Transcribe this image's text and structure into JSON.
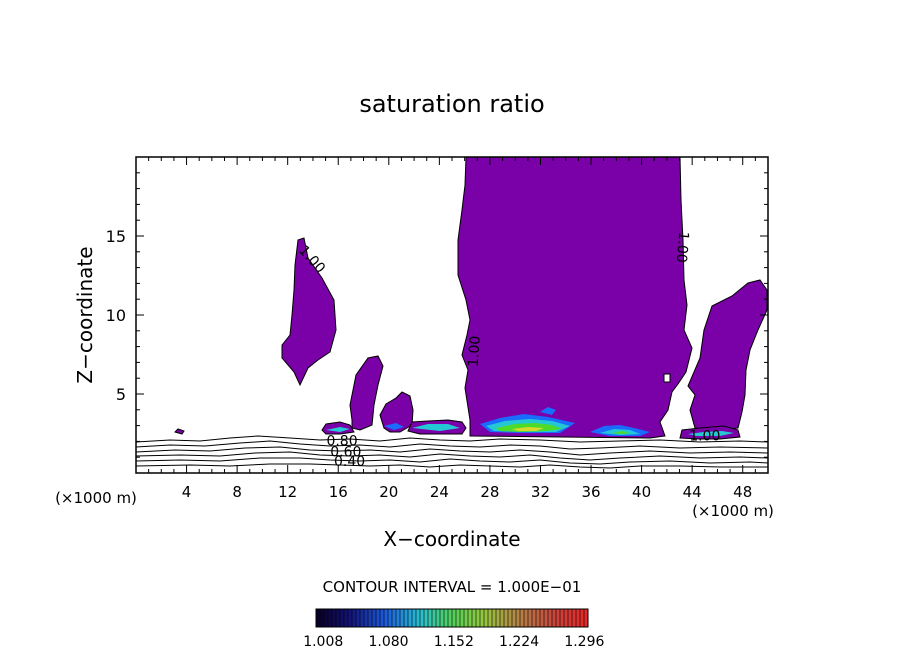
{
  "chart_data": {
    "type": "contour",
    "title": "saturation ratio",
    "xlabel": "X−coordinate",
    "ylabel": "Z−coordinate",
    "x_unit": "(×1000 m)",
    "z_unit": "(×1000 m)",
    "xlim": [
      0,
      50
    ],
    "ylim": [
      0,
      20
    ],
    "x_ticks": [
      4,
      8,
      12,
      16,
      20,
      24,
      28,
      32,
      36,
      40,
      44,
      48
    ],
    "y_ticks": [
      5,
      10,
      15
    ],
    "contour_interval_text": "CONTOUR INTERVAL = 1.000E−01",
    "contour_labels": [
      {
        "text": "1.00",
        "x": 13.9,
        "z": 13.5,
        "rotate": 48
      },
      {
        "text": "1.00",
        "x": 26.8,
        "z": 7.7,
        "rotate": -86
      },
      {
        "text": "1.00",
        "x": 43.2,
        "z": 14.3,
        "rotate": 95
      },
      {
        "text": "1.00",
        "x": 45.0,
        "z": 2.3,
        "rotate": 0
      },
      {
        "text": "0.80",
        "x": 16.3,
        "z": 2.0,
        "rotate": 0
      },
      {
        "text": "0.60",
        "x": 16.6,
        "z": 1.3,
        "rotate": 0
      },
      {
        "text": "0.40",
        "x": 16.9,
        "z": 0.7,
        "rotate": 0
      }
    ],
    "colorbar_ticks": [
      "1.008",
      "1.080",
      "1.152",
      "1.224",
      "1.296"
    ],
    "colorbar_range": [
      1.0,
      1.3
    ],
    "colors": {
      "saturated_fill": "#7a00a8",
      "contour_line": "#000000"
    }
  }
}
